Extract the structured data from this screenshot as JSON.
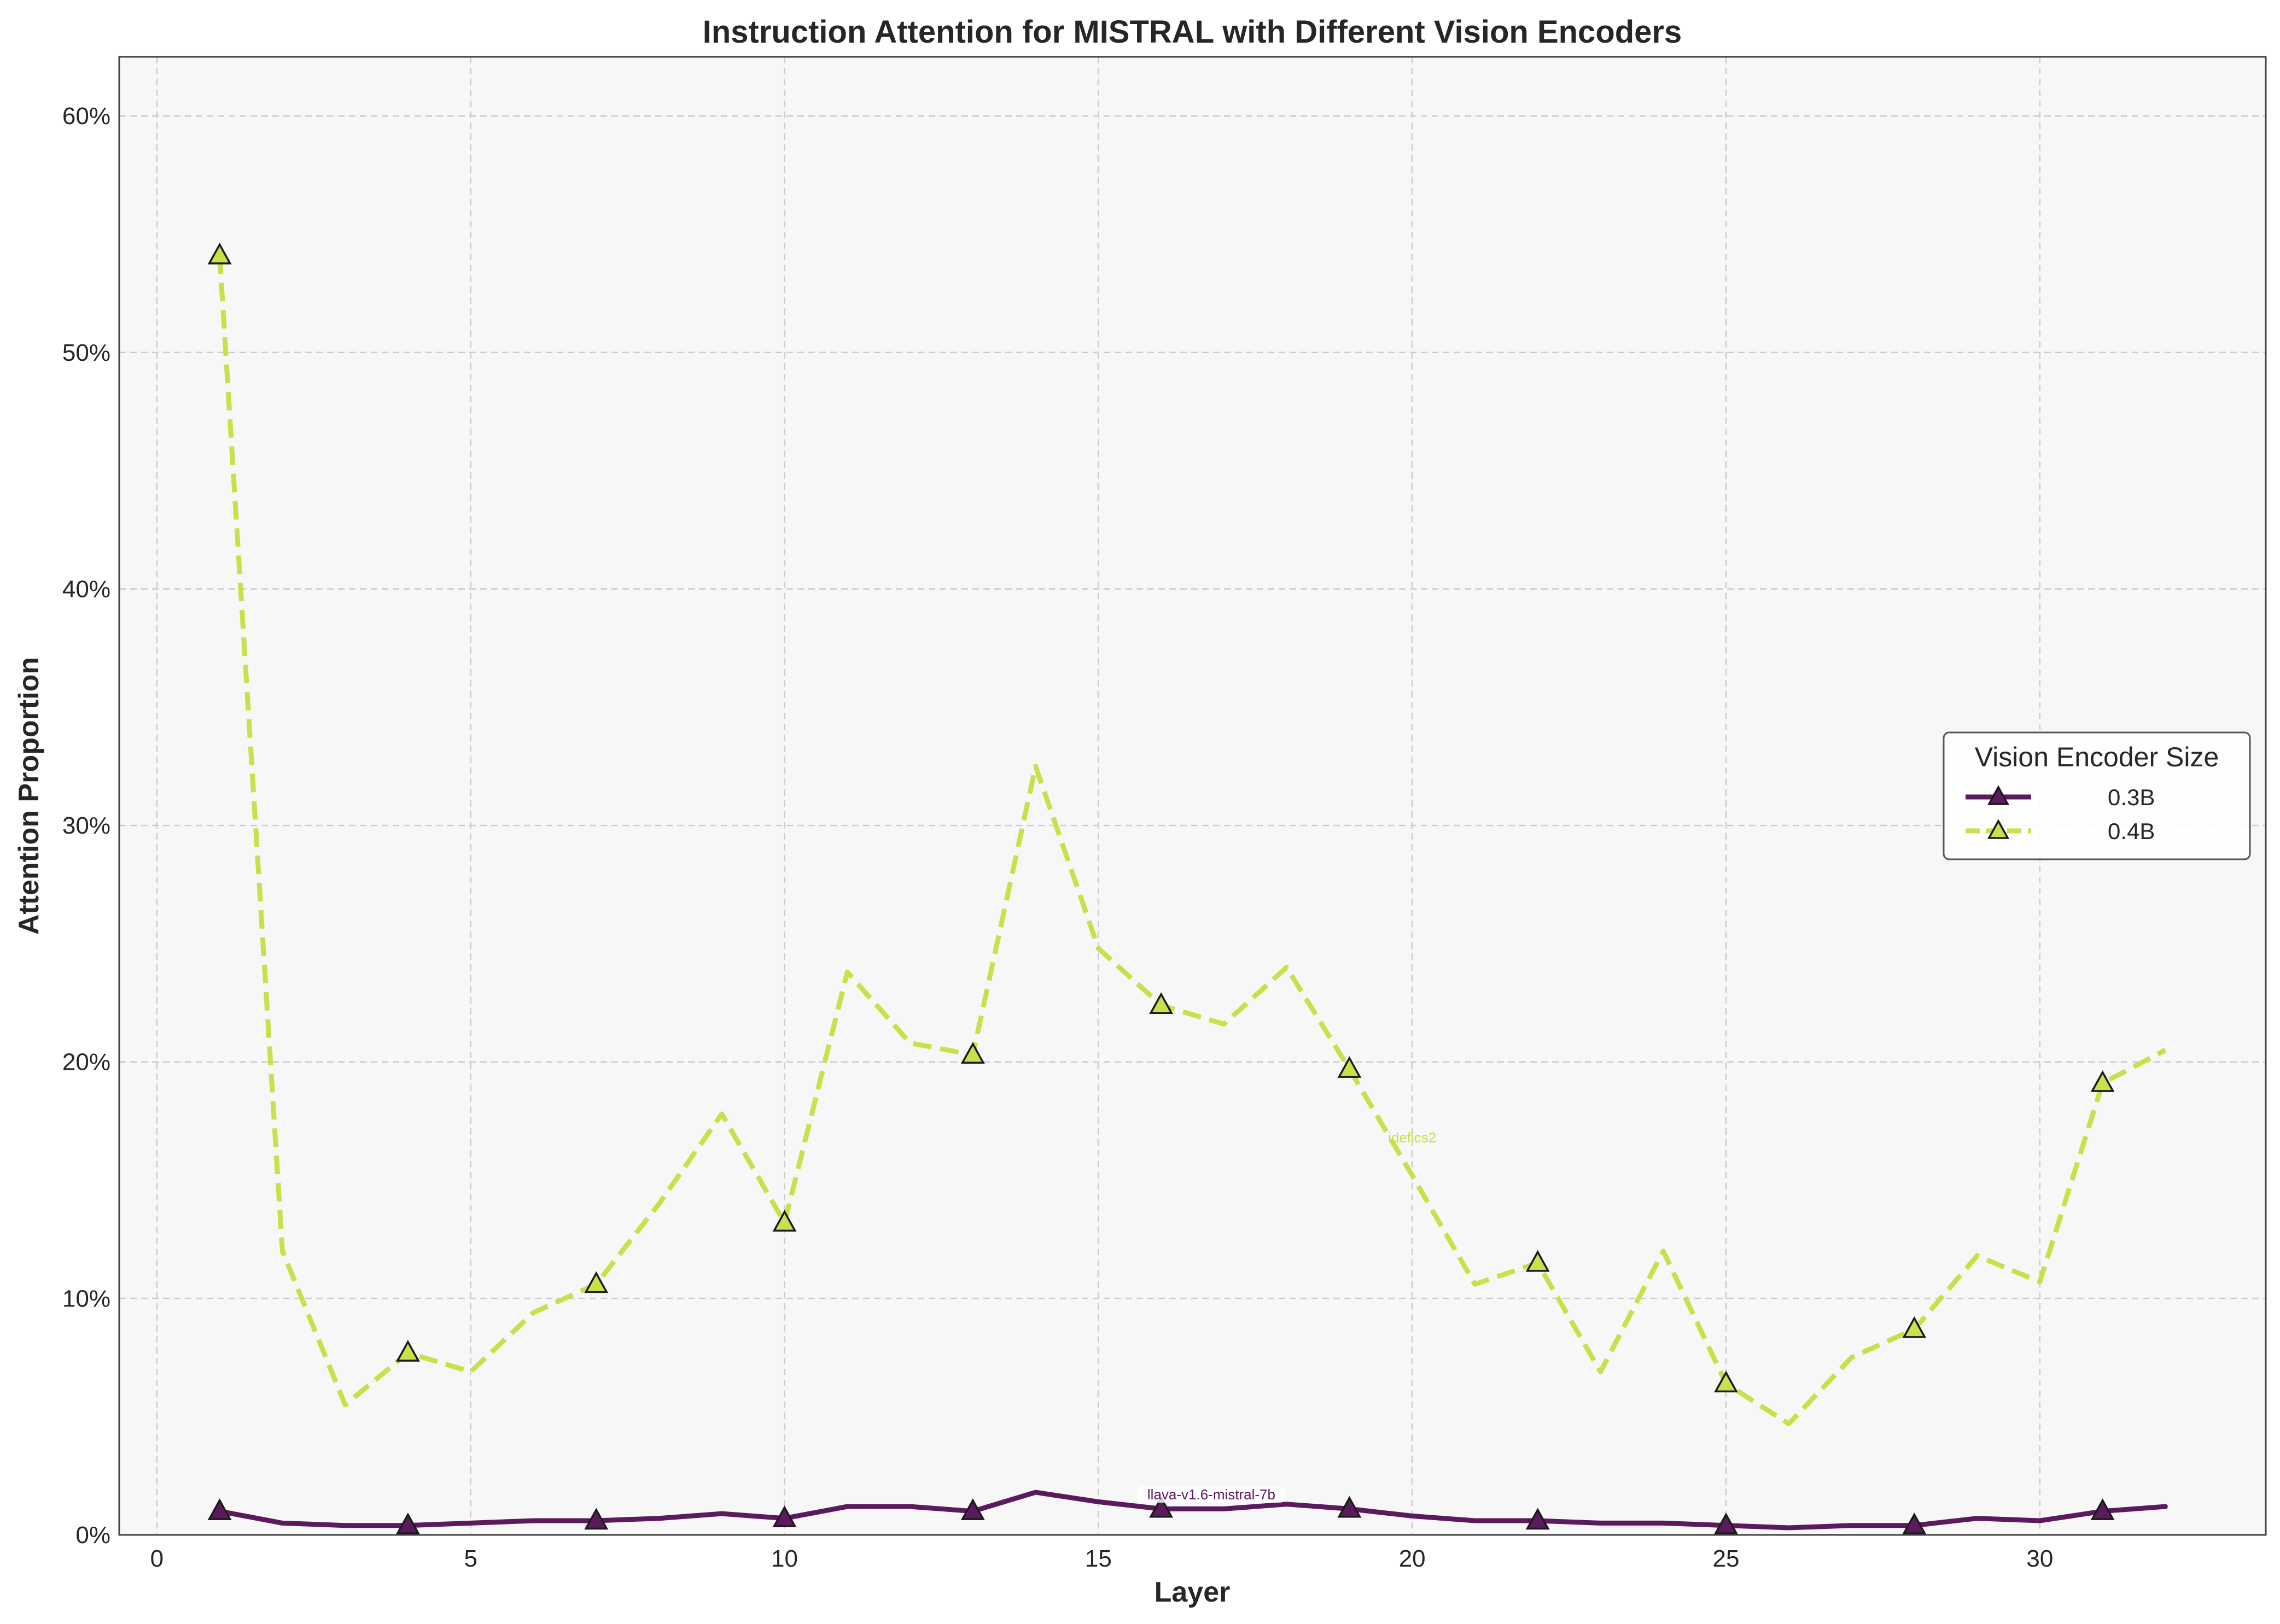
{
  "chart_data": {
    "type": "line",
    "title": "Instruction Attention for MISTRAL with Different Vision Encoders",
    "xlabel": "Layer",
    "ylabel": "Attention Proportion",
    "xlim": [
      -0.6,
      33.6
    ],
    "ylim": [
      0,
      0.625
    ],
    "xticks": [
      0,
      5,
      10,
      15,
      20,
      25,
      30
    ],
    "xtick_labels": [
      "0",
      "5",
      "10",
      "15",
      "20",
      "25",
      "30"
    ],
    "yticks": [
      0,
      0.1,
      0.2,
      0.3,
      0.4,
      0.5,
      0.6
    ],
    "ytick_labels": [
      "0%",
      "10%",
      "20%",
      "30%",
      "40%",
      "50%",
      "60%"
    ],
    "grid": true,
    "legend": {
      "title": "Vision Encoder Size",
      "placement": "center-right"
    },
    "x": [
      1,
      2,
      3,
      4,
      5,
      6,
      7,
      8,
      9,
      10,
      11,
      12,
      13,
      14,
      15,
      16,
      17,
      18,
      19,
      20,
      21,
      22,
      23,
      24,
      25,
      26,
      27,
      28,
      29,
      30,
      31,
      32
    ],
    "series": [
      {
        "name": "0.3B",
        "color": "#5c1a5e",
        "style": "solid",
        "marker": "triangle",
        "markevery": 3,
        "values": [
          0.01,
          0.005,
          0.004,
          0.004,
          0.005,
          0.006,
          0.006,
          0.007,
          0.009,
          0.007,
          0.012,
          0.012,
          0.01,
          0.018,
          0.014,
          0.011,
          0.011,
          0.013,
          0.011,
          0.008,
          0.006,
          0.006,
          0.005,
          0.005,
          0.004,
          0.003,
          0.004,
          0.004,
          0.007,
          0.006,
          0.01,
          0.012
        ]
      },
      {
        "name": "0.4B",
        "color": "#c8e04a",
        "style": "dashed",
        "marker": "triangle",
        "markevery": 3,
        "values": [
          0.541,
          0.12,
          0.055,
          0.077,
          0.069,
          0.094,
          0.106,
          0.14,
          0.178,
          0.132,
          0.238,
          0.208,
          0.203,
          0.325,
          0.248,
          0.224,
          0.216,
          0.24,
          0.197,
          0.152,
          0.106,
          0.115,
          0.069,
          0.12,
          0.064,
          0.047,
          0.075,
          0.087,
          0.118,
          0.107,
          0.191,
          0.205
        ]
      }
    ],
    "annotations": [
      {
        "text": "llava-v1.6-mistral-7b",
        "x": 16.8,
        "y": 0.015,
        "series": 0
      },
      {
        "text": "idefics2",
        "x": 20.0,
        "y": 0.166,
        "series": 1
      }
    ]
  }
}
